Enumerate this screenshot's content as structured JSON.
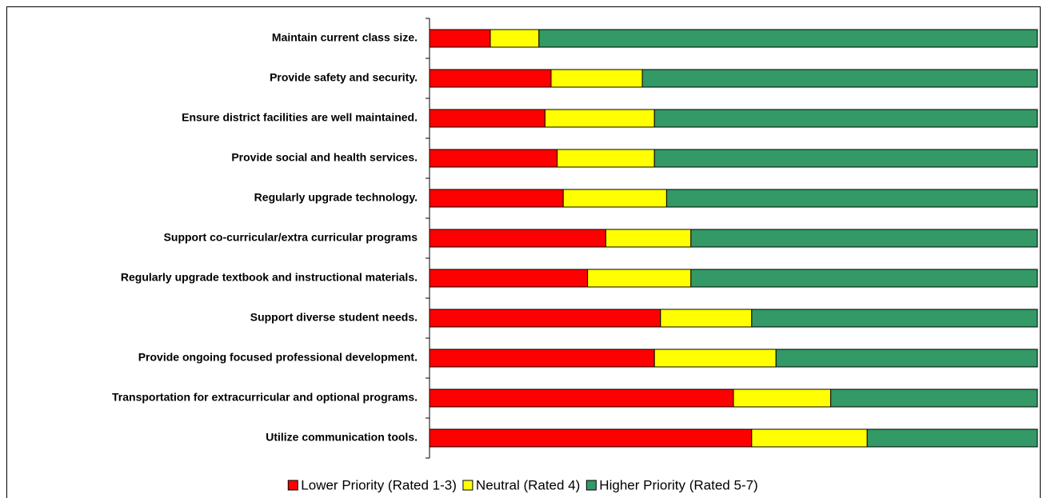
{
  "chart_data": {
    "type": "stacked_bar_horizontal_100",
    "categories": [
      "Maintain current class size.",
      "Provide safety and security.",
      "Ensure district facilities are well maintained.",
      "Provide social and health services.",
      "Regularly upgrade technology.",
      "Support co-curricular/extra curricular programs",
      "Regularly upgrade textbook and instructional materials.",
      "Support diverse student needs.",
      "Provide ongoing focused professional development.",
      "Transportation for extracurricular and optional programs.",
      "Utilize communication tools."
    ],
    "series": [
      {
        "name": "Lower Priority (Rated 1-3)",
        "color": "#ff0000",
        "values": [
          10,
          20,
          19,
          21,
          22,
          29,
          26,
          38,
          37,
          50,
          53
        ]
      },
      {
        "name": "Neutral (Rated 4)",
        "color": "#ffff00",
        "values": [
          8,
          15,
          18,
          16,
          17,
          14,
          17,
          15,
          20,
          16,
          19
        ]
      },
      {
        "name": "Higher Priority (Rated 5-7)",
        "color": "#339966",
        "values": [
          82,
          65,
          63,
          63,
          61,
          57,
          57,
          47,
          43,
          34,
          28
        ]
      }
    ],
    "xlim": [
      0,
      100
    ],
    "legend": "bottom"
  }
}
